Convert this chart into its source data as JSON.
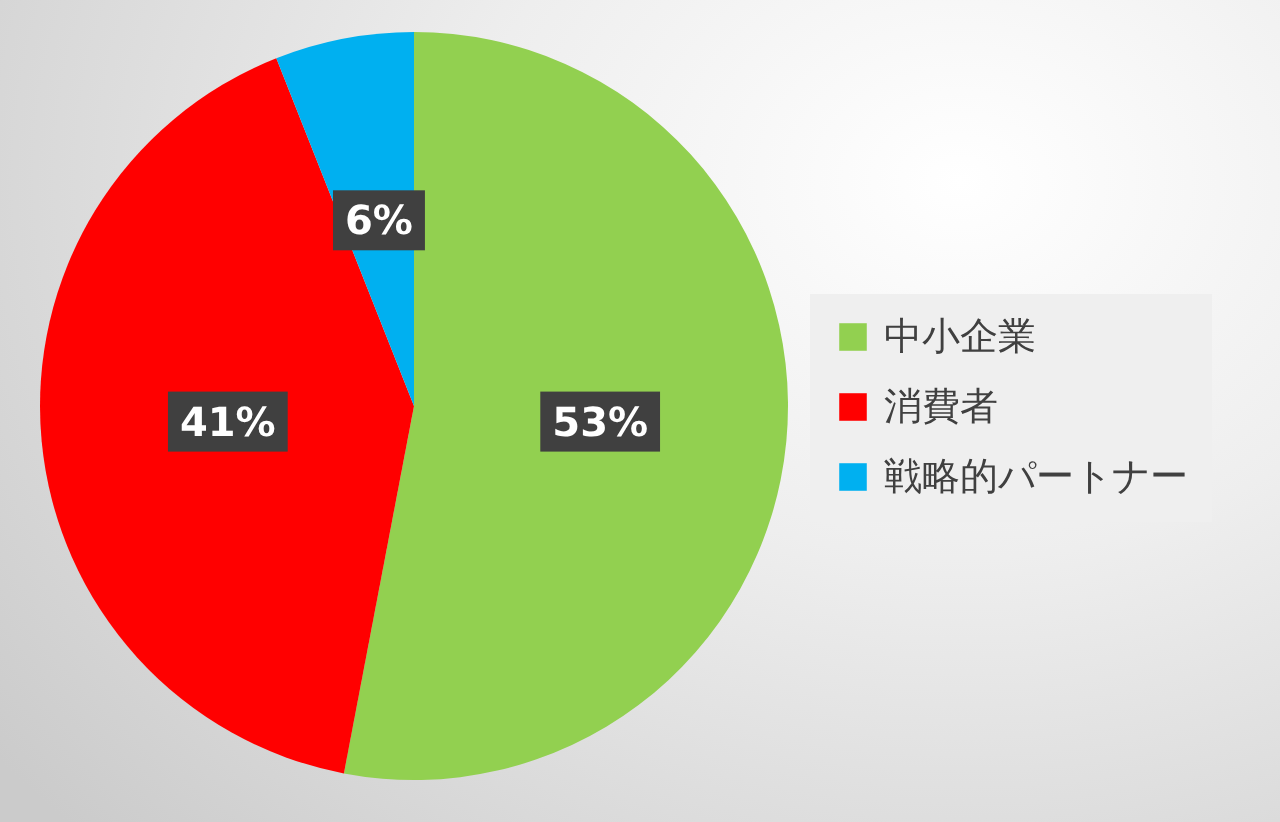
{
  "chart_data": {
    "type": "pie",
    "categories": [
      "中小企業",
      "消費者",
      "戦略的パートナー"
    ],
    "values": [
      53,
      41,
      6
    ],
    "colors": [
      "#92d050",
      "#ff0000",
      "#00b0f0"
    ],
    "value_labels": [
      "53%",
      "41%",
      "6%"
    ],
    "legend": "right"
  }
}
